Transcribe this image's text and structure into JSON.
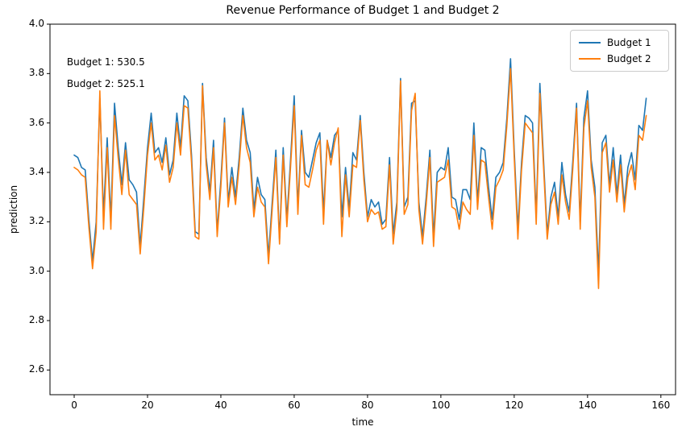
{
  "chart_data": {
    "type": "line",
    "title": "Revenue Performance of Budget 1 and Budget 2",
    "xlabel": "time",
    "ylabel": "prediction",
    "xlim": [
      -6.6,
      164.0
    ],
    "ylim": [
      2.5,
      4.0
    ],
    "x_ticks": [
      0,
      20,
      40,
      60,
      80,
      100,
      120,
      140,
      160
    ],
    "y_ticks": [
      2.6,
      2.8,
      3.0,
      3.2,
      3.4,
      3.6,
      3.8,
      4.0
    ],
    "grid": false,
    "legend_position": "upper right",
    "annotations": [
      {
        "text": "Budget 1: 530.5",
        "x": -2,
        "y": 3.87
      },
      {
        "text": "Budget 2: 525.1",
        "x": -2,
        "y": 3.78
      }
    ],
    "x_start": 0,
    "x_step": 1,
    "series": [
      {
        "name": "Budget 1",
        "color": "#1f77b4",
        "values": [
          3.47,
          3.46,
          3.42,
          3.41,
          3.21,
          3.04,
          3.2,
          3.7,
          3.23,
          3.54,
          3.21,
          3.68,
          3.5,
          3.35,
          3.52,
          3.37,
          3.35,
          3.32,
          3.1,
          3.3,
          3.5,
          3.64,
          3.48,
          3.5,
          3.44,
          3.54,
          3.39,
          3.45,
          3.64,
          3.5,
          3.71,
          3.69,
          3.47,
          3.16,
          3.15,
          3.76,
          3.46,
          3.32,
          3.53,
          3.16,
          3.37,
          3.62,
          3.28,
          3.42,
          3.3,
          3.46,
          3.66,
          3.53,
          3.48,
          3.25,
          3.38,
          3.31,
          3.29,
          3.06,
          3.28,
          3.49,
          3.13,
          3.5,
          3.21,
          3.45,
          3.71,
          3.26,
          3.57,
          3.4,
          3.38,
          3.45,
          3.52,
          3.56,
          3.24,
          3.53,
          3.46,
          3.55,
          3.57,
          3.22,
          3.42,
          3.25,
          3.48,
          3.45,
          3.63,
          3.4,
          3.22,
          3.29,
          3.26,
          3.28,
          3.19,
          3.21,
          3.46,
          3.15,
          3.28,
          3.78,
          3.26,
          3.3,
          3.68,
          3.69,
          3.28,
          3.14,
          3.3,
          3.49,
          3.14,
          3.4,
          3.42,
          3.41,
          3.5,
          3.3,
          3.29,
          3.21,
          3.33,
          3.33,
          3.29,
          3.6,
          3.28,
          3.5,
          3.49,
          3.34,
          3.21,
          3.38,
          3.4,
          3.44,
          3.62,
          3.86,
          3.49,
          3.17,
          3.44,
          3.63,
          3.62,
          3.6,
          3.22,
          3.76,
          3.45,
          3.15,
          3.3,
          3.36,
          3.22,
          3.44,
          3.31,
          3.24,
          3.45,
          3.68,
          3.2,
          3.62,
          3.73,
          3.45,
          3.34,
          2.99,
          3.52,
          3.55,
          3.35,
          3.5,
          3.31,
          3.47,
          3.27,
          3.42,
          3.48,
          3.37,
          3.59,
          3.57,
          3.7
        ]
      },
      {
        "name": "Budget 2",
        "color": "#ff7f0e",
        "values": [
          3.42,
          3.41,
          3.39,
          3.38,
          3.18,
          3.01,
          3.16,
          3.73,
          3.17,
          3.5,
          3.17,
          3.63,
          3.46,
          3.31,
          3.49,
          3.31,
          3.29,
          3.27,
          3.07,
          3.26,
          3.47,
          3.6,
          3.45,
          3.47,
          3.41,
          3.51,
          3.36,
          3.42,
          3.6,
          3.47,
          3.67,
          3.66,
          3.44,
          3.14,
          3.13,
          3.75,
          3.43,
          3.29,
          3.5,
          3.14,
          3.34,
          3.6,
          3.26,
          3.38,
          3.27,
          3.43,
          3.63,
          3.5,
          3.44,
          3.22,
          3.34,
          3.28,
          3.26,
          3.03,
          3.25,
          3.46,
          3.11,
          3.47,
          3.18,
          3.42,
          3.67,
          3.23,
          3.55,
          3.35,
          3.34,
          3.41,
          3.49,
          3.53,
          3.19,
          3.53,
          3.43,
          3.52,
          3.58,
          3.14,
          3.39,
          3.22,
          3.43,
          3.42,
          3.61,
          3.37,
          3.2,
          3.25,
          3.23,
          3.24,
          3.17,
          3.18,
          3.43,
          3.11,
          3.25,
          3.77,
          3.23,
          3.27,
          3.65,
          3.72,
          3.25,
          3.11,
          3.27,
          3.46,
          3.1,
          3.36,
          3.37,
          3.38,
          3.45,
          3.26,
          3.25,
          3.17,
          3.28,
          3.25,
          3.23,
          3.55,
          3.25,
          3.45,
          3.44,
          3.3,
          3.17,
          3.34,
          3.37,
          3.41,
          3.59,
          3.82,
          3.46,
          3.13,
          3.41,
          3.6,
          3.58,
          3.56,
          3.19,
          3.72,
          3.42,
          3.13,
          3.27,
          3.32,
          3.19,
          3.39,
          3.28,
          3.21,
          3.42,
          3.66,
          3.17,
          3.58,
          3.69,
          3.42,
          3.3,
          2.93,
          3.48,
          3.52,
          3.32,
          3.45,
          3.28,
          3.43,
          3.24,
          3.38,
          3.43,
          3.33,
          3.55,
          3.53,
          3.63
        ]
      }
    ]
  }
}
